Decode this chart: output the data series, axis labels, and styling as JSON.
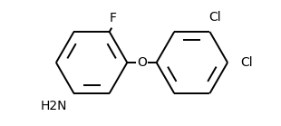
{
  "background_color": "#ffffff",
  "bond_color": "#000000",
  "label_color": "#000000",
  "font_size": 10,
  "fig_width": 3.1,
  "fig_height": 1.39,
  "dpi": 100,
  "F_label": "F",
  "Cl1_label": "Cl",
  "Cl2_label": "Cl",
  "NH2_label": "H2N",
  "O_label": "O"
}
